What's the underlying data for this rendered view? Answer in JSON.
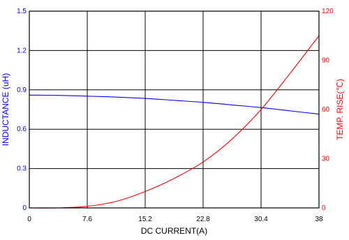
{
  "chart_data": {
    "type": "line",
    "xlabel": "DC CURRENT(A)",
    "ylabel_left": "INDUCTANCE (uH)",
    "ylabel_right": "TEMP. RISE(℃)",
    "xlim": [
      0,
      38
    ],
    "ylim_left": [
      0,
      1.5
    ],
    "ylim_right": [
      0,
      120
    ],
    "x_ticks": [
      "0",
      "7.6",
      "15.2",
      "22.8",
      "30.4",
      "38"
    ],
    "y_left_ticks": [
      "0",
      "0.3",
      "0.6",
      "0.9",
      "1.2",
      "1.5"
    ],
    "y_right_ticks": [
      "0",
      "30",
      "60",
      "90",
      "120"
    ],
    "grid": true,
    "colors": {
      "left_axis": "#0000ff",
      "right_axis": "#ff0000",
      "grid": "#000000"
    },
    "series": [
      {
        "axis": "left",
        "color": "#0000ff",
        "x": [
          0,
          3.8,
          7.6,
          11.4,
          15.2,
          19,
          22.8,
          26.6,
          30.4,
          34.2,
          38
        ],
        "values": [
          0.86,
          0.858,
          0.852,
          0.845,
          0.835,
          0.82,
          0.805,
          0.785,
          0.765,
          0.74,
          0.715
        ]
      },
      {
        "axis": "right",
        "color": "#ff0000",
        "x": [
          0,
          3.8,
          7.6,
          11.4,
          15.2,
          19,
          22.8,
          26.6,
          30.4,
          34.2,
          38
        ],
        "values": [
          0,
          0,
          1,
          4,
          10,
          18,
          28,
          42,
          60,
          82,
          105
        ]
      }
    ]
  }
}
